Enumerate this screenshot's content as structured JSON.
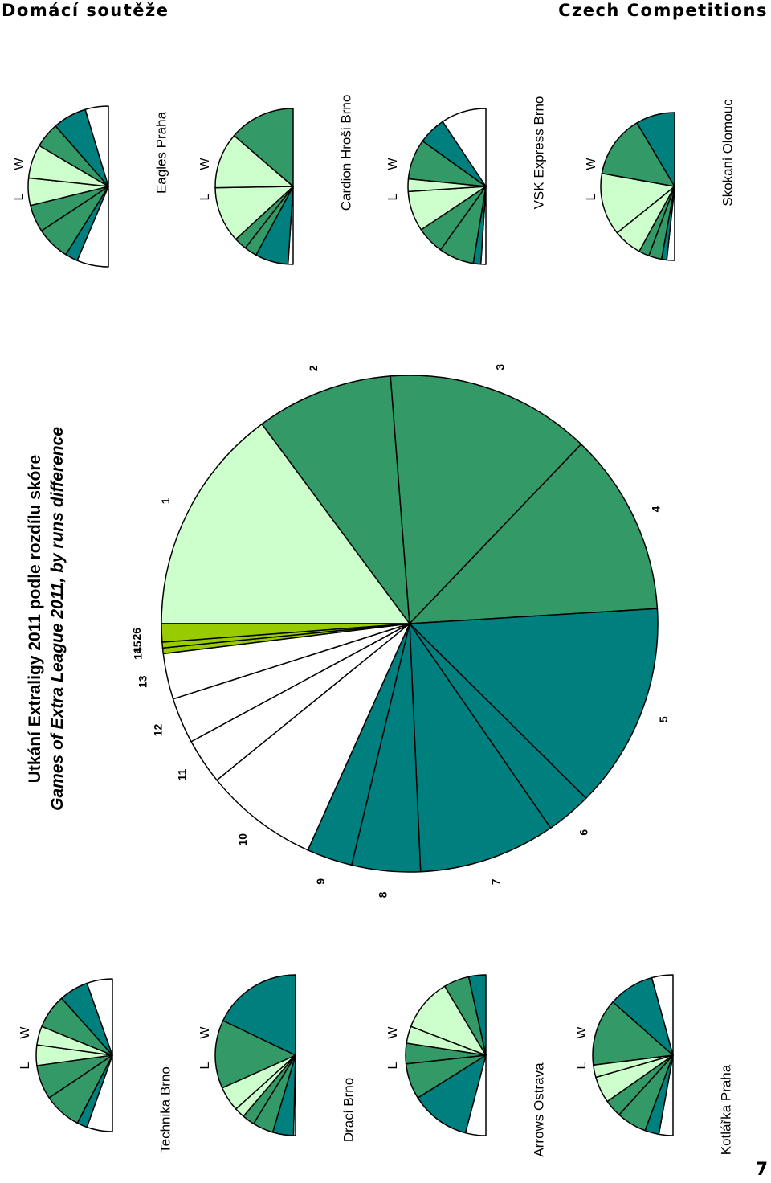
{
  "header": {
    "left": "Domácí soutěže",
    "right": "Czech Competitions"
  },
  "page_number": "7",
  "chart_data": {
    "type": "pie",
    "title": "Utkání Extraligy 2011 podle rozdílu skóre",
    "subtitle": "Games of Extra League 2011, by runs difference",
    "categories": [
      "1",
      "2",
      "3",
      "4",
      "5",
      "6",
      "7",
      "8",
      "9",
      "10",
      "11",
      "12",
      "13",
      "14",
      "15",
      "26"
    ],
    "values": [
      10,
      6,
      9,
      8,
      9,
      2,
      6,
      3,
      2,
      5,
      2,
      2,
      2,
      0.25,
      0.25,
      0.8
    ],
    "colors": {
      "win_light": "#ccffcc",
      "win_mid": "#339966",
      "win_dark": "#007f7f",
      "loss": "#ffffff",
      "highlight": "#99cc00",
      "outline": "#000000"
    },
    "team_charts": [
      {
        "team": "Technika Brno",
        "l_label": "L",
        "w_label": "W",
        "values": [
          1.5,
          0.6,
          2.2,
          2,
          1.2,
          1.1,
          2,
          1.7,
          1.5
        ]
      },
      {
        "team": "Draci Brno",
        "l_label": "L",
        "w_label": "W",
        "values": [
          0.1,
          1,
          1,
          0.6,
          0.5,
          1.2,
          3.3,
          4.3
        ]
      },
      {
        "team": "Arrows Ostrava",
        "l_label": "L",
        "w_label": "W",
        "values": [
          1.2,
          3.5,
          2.1,
          1.2,
          1,
          3.1,
          1.5,
          1
        ]
      },
      {
        "team": "Kotlářka Praha",
        "l_label": "L",
        "w_label": "W",
        "values": [
          0.8,
          0.8,
          1.7,
          1,
          1.5,
          0.7,
          3.8,
          2.6,
          1.2
        ]
      },
      {
        "team": "Eagles Praha",
        "l_label": "L",
        "w_label": "W",
        "values": [
          1.5,
          0.6,
          1.6,
          1.3,
          1.3,
          1.6,
          1.2,
          1.6,
          1.1
        ]
      },
      {
        "team": "Cardion Hroši Brno",
        "l_label": "L",
        "w_label": "W",
        "values": [
          0.2,
          1.3,
          0.5,
          0.5,
          2.2,
          2.2,
          2.6
        ]
      },
      {
        "team": "VSK Express Brno",
        "l_label": "L",
        "w_label": "W",
        "values": [
          0.2,
          0.3,
          1.4,
          1.1,
          1.6,
          0.5,
          1.6,
          1.1,
          1.8
        ]
      },
      {
        "team": "Skokani Olomouc",
        "l_label": "L",
        "w_label": "W",
        "values": [
          0.3,
          0.2,
          0.5,
          0.4,
          1.1,
          2.4,
          2.4,
          1.5
        ]
      }
    ]
  }
}
